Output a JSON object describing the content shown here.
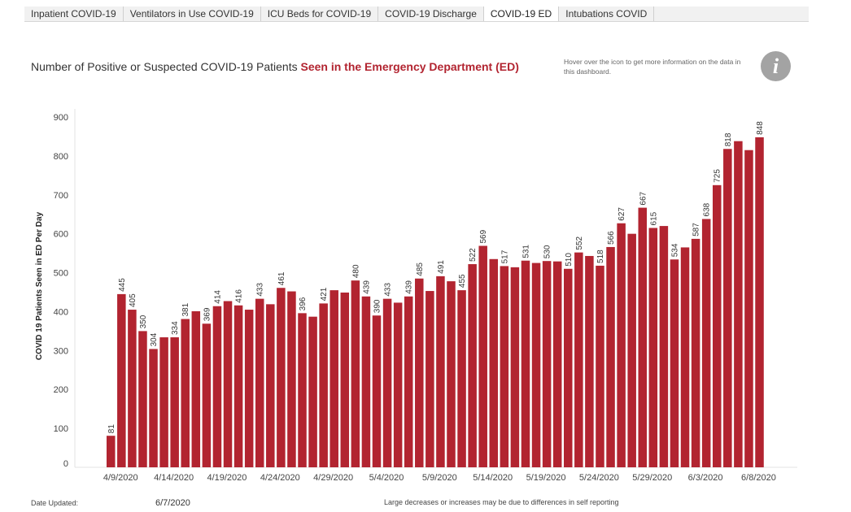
{
  "tabs": [
    {
      "label": "Inpatient COVID-19",
      "active": false
    },
    {
      "label": "Ventilators in Use COVID-19",
      "active": false
    },
    {
      "label": "ICU Beds for COVID-19",
      "active": false
    },
    {
      "label": "COVID-19 Discharge",
      "active": false
    },
    {
      "label": "COVID-19 ED",
      "active": true
    },
    {
      "label": "Intubations COVID",
      "active": false
    }
  ],
  "header": {
    "title_prefix": "Number of Positive or Suspected COVID-19 Patients ",
    "title_highlight": "Seen in the Emergency Department (ED)",
    "info_text": "Hover over the icon to get more information on the data in this dashboard.",
    "info_icon": "info-icon",
    "info_icon_glyph": "i"
  },
  "footer": {
    "date_updated_label": "Date Updated:",
    "date_updated_value": "6/7/2020",
    "note": "Large decreases or increases may be due to differences in self reporting"
  },
  "colors": {
    "bar": "#b22430",
    "accent": "#b22430"
  },
  "chart_data": {
    "type": "bar",
    "ylabel": "COVID 19 Patients Seen in ED Per Day",
    "ylim": [
      0,
      900
    ],
    "yticks": [
      0,
      100,
      200,
      300,
      400,
      500,
      600,
      700,
      800,
      900
    ],
    "grid": false,
    "x_tick_labels": [
      {
        "index": 0,
        "label": "4/9/2020"
      },
      {
        "index": 5,
        "label": "4/14/2020"
      },
      {
        "index": 10,
        "label": "4/19/2020"
      },
      {
        "index": 15,
        "label": "4/24/2020"
      },
      {
        "index": 20,
        "label": "4/29/2020"
      },
      {
        "index": 25,
        "label": "5/4/2020"
      },
      {
        "index": 30,
        "label": "5/9/2020"
      },
      {
        "index": 35,
        "label": "5/14/2020"
      },
      {
        "index": 40,
        "label": "5/19/2020"
      },
      {
        "index": 45,
        "label": "5/24/2020"
      },
      {
        "index": 50,
        "label": "5/29/2020"
      },
      {
        "index": 55,
        "label": "6/3/2020"
      },
      {
        "index": 60,
        "label": "6/8/2020"
      }
    ],
    "values": [
      81,
      445,
      405,
      350,
      304,
      334,
      334,
      381,
      401,
      369,
      414,
      427,
      416,
      405,
      433,
      419,
      461,
      452,
      396,
      387,
      421,
      455,
      449,
      480,
      439,
      390,
      433,
      423,
      439,
      485,
      453,
      491,
      478,
      455,
      522,
      569,
      535,
      517,
      514,
      531,
      525,
      530,
      529,
      510,
      552,
      543,
      518,
      566,
      627,
      600,
      667,
      615,
      620,
      534,
      565,
      587,
      638,
      725,
      818,
      838,
      815,
      848
    ],
    "data_labels": [
      {
        "index": 0,
        "label": "81"
      },
      {
        "index": 1,
        "label": "445"
      },
      {
        "index": 2,
        "label": "405"
      },
      {
        "index": 3,
        "label": "350"
      },
      {
        "index": 4,
        "label": "304"
      },
      {
        "index": 6,
        "label": "334"
      },
      {
        "index": 7,
        "label": "381"
      },
      {
        "index": 9,
        "label": "369"
      },
      {
        "index": 10,
        "label": "414"
      },
      {
        "index": 12,
        "label": "416"
      },
      {
        "index": 14,
        "label": "433"
      },
      {
        "index": 16,
        "label": "461"
      },
      {
        "index": 18,
        "label": "396"
      },
      {
        "index": 20,
        "label": "421"
      },
      {
        "index": 23,
        "label": "480"
      },
      {
        "index": 24,
        "label": "439"
      },
      {
        "index": 25,
        "label": "390"
      },
      {
        "index": 26,
        "label": "433"
      },
      {
        "index": 28,
        "label": "439"
      },
      {
        "index": 29,
        "label": "485"
      },
      {
        "index": 31,
        "label": "491"
      },
      {
        "index": 33,
        "label": "455"
      },
      {
        "index": 34,
        "label": "522"
      },
      {
        "index": 35,
        "label": "569"
      },
      {
        "index": 37,
        "label": "517"
      },
      {
        "index": 39,
        "label": "531"
      },
      {
        "index": 41,
        "label": "530"
      },
      {
        "index": 43,
        "label": "510"
      },
      {
        "index": 44,
        "label": "552"
      },
      {
        "index": 46,
        "label": "518"
      },
      {
        "index": 47,
        "label": "566"
      },
      {
        "index": 48,
        "label": "627"
      },
      {
        "index": 50,
        "label": "667"
      },
      {
        "index": 51,
        "label": "615"
      },
      {
        "index": 53,
        "label": "534"
      },
      {
        "index": 55,
        "label": "587"
      },
      {
        "index": 56,
        "label": "638"
      },
      {
        "index": 57,
        "label": "725"
      },
      {
        "index": 58,
        "label": "818"
      },
      {
        "index": 61,
        "label": "848"
      }
    ]
  }
}
